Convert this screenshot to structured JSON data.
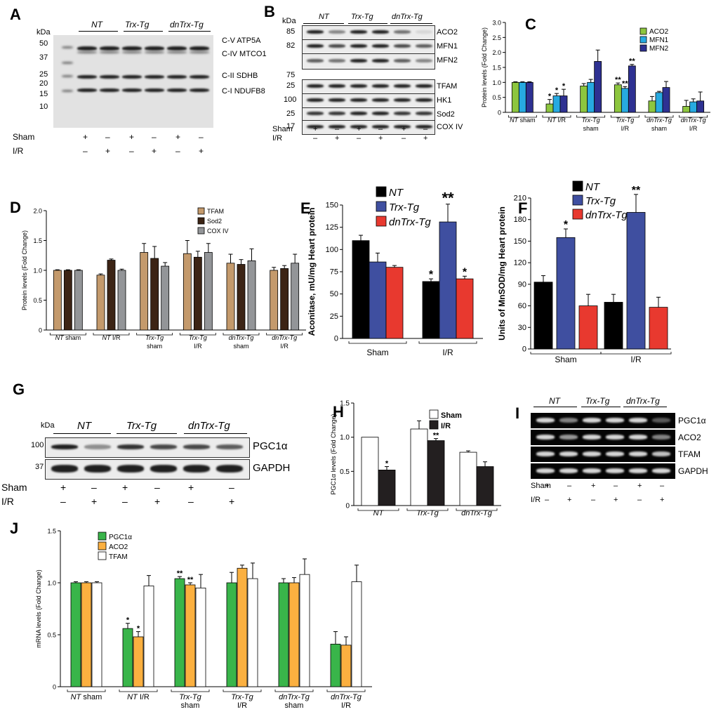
{
  "panels": {
    "A": {
      "letter": "A",
      "kda_label": "kDa",
      "markers": [
        "50",
        "37",
        "25",
        "20",
        "15",
        "10"
      ],
      "groups": [
        "NT",
        "Trx-Tg",
        "dnTrx-Tg"
      ],
      "band_labels": [
        "C-V ATP5A",
        "C-IV MTCO1",
        "C-II SDHB",
        "C-I NDUFB8"
      ],
      "row_labels": [
        "Sham",
        "I/R"
      ],
      "sham_signs": [
        "+",
        "–",
        "+",
        "–",
        "+",
        "–"
      ],
      "ir_signs": [
        "–",
        "+",
        "–",
        "+",
        "–",
        "+"
      ]
    },
    "B": {
      "letter": "B",
      "kda_label": "kDa",
      "groups": [
        "NT",
        "Trx-Tg",
        "dnTrx-Tg"
      ],
      "rows": [
        {
          "kda": "85",
          "label": "ACO2"
        },
        {
          "kda": "82",
          "label": "MFN1"
        },
        {
          "kda": "",
          "label": "MFN2"
        },
        {
          "kda": "75",
          "label": ""
        },
        {
          "kda": "25",
          "label": "TFAM"
        },
        {
          "kda": "100",
          "label": "HK1"
        },
        {
          "kda": "25",
          "label": "Sod2"
        },
        {
          "kda": "17",
          "label": "COX IV"
        }
      ],
      "row_labels": [
        "Sham",
        "I/R"
      ],
      "sham_signs": [
        "+",
        "–",
        "+",
        "–",
        "+",
        "–"
      ],
      "ir_signs": [
        "–",
        "+",
        "–",
        "+",
        "–",
        "+"
      ]
    },
    "G": {
      "letter": "G",
      "kda_label": "kDa",
      "groups": [
        "NT",
        "Trx-Tg",
        "dnTrx-Tg"
      ],
      "rows": [
        {
          "kda": "100",
          "label": "PGC1α"
        },
        {
          "kda": "37",
          "label": "GAPDH"
        }
      ],
      "row_labels": [
        "Sham",
        "I/R"
      ],
      "sham_signs": [
        "+",
        "–",
        "+",
        "–",
        "+",
        "–"
      ],
      "ir_signs": [
        "–",
        "+",
        "–",
        "+",
        "–",
        "+"
      ]
    },
    "I": {
      "letter": "I",
      "groups": [
        "NT",
        "Trx-Tg",
        "dnTrx-Tg"
      ],
      "rows": [
        "PGC1α",
        "ACO2",
        "TFAM",
        "GAPDH"
      ],
      "row_labels": [
        "Sham",
        "I/R"
      ],
      "sham_signs": [
        "+",
        "–",
        "+",
        "–",
        "+",
        "–"
      ],
      "ir_signs": [
        "–",
        "+",
        "–",
        "+",
        "–",
        "+"
      ]
    }
  },
  "chart_data": [
    {
      "id": "C",
      "letter": "C",
      "type": "bar",
      "ylabel": "Protein levels (Fold Change)",
      "ylim": [
        0,
        3.0
      ],
      "yticks": [
        "0",
        "0.5",
        "1.0",
        "1.5",
        "2.0",
        "2.5",
        "3.0"
      ],
      "categories": [
        [
          "NT sham"
        ],
        [
          "NT I/R"
        ],
        [
          "Trx-Tg",
          "sham"
        ],
        [
          "Trx-Tg",
          "I/R"
        ],
        [
          "dnTrx-Tg",
          "sham"
        ],
        [
          "dnTrx-Tg",
          "I/R"
        ]
      ],
      "legend_position": "top-right",
      "series": [
        {
          "name": "ACO2",
          "color": "#8dc63f",
          "values": [
            1.0,
            0.28,
            0.88,
            0.92,
            0.38,
            0.2
          ],
          "errors": [
            0.02,
            0.15,
            0.08,
            0.06,
            0.15,
            0.2
          ],
          "stars": [
            "",
            "*",
            "",
            "**",
            "",
            ""
          ]
        },
        {
          "name": "MFN1",
          "color": "#27aae1",
          "values": [
            1.0,
            0.55,
            1.0,
            0.8,
            0.66,
            0.35
          ],
          "errors": [
            0.02,
            0.08,
            0.1,
            0.06,
            0.04,
            0.1
          ],
          "stars": [
            "",
            "*",
            "",
            "**",
            "",
            ""
          ]
        },
        {
          "name": "MFN2",
          "color": "#2e3192",
          "values": [
            1.0,
            0.55,
            1.7,
            1.55,
            0.83,
            0.38
          ],
          "errors": [
            0.02,
            0.22,
            0.38,
            0.05,
            0.2,
            0.3
          ],
          "stars": [
            "",
            "*",
            "",
            "**",
            "",
            ""
          ]
        }
      ]
    },
    {
      "id": "D",
      "letter": "D",
      "type": "bar",
      "ylabel": "Protein levels (Fold Change)",
      "ylim": [
        0,
        2.0
      ],
      "yticks": [
        "0",
        "0.5",
        "1.0",
        "1.5",
        "2.0"
      ],
      "categories": [
        [
          "NT sham"
        ],
        [
          "NT I/R"
        ],
        [
          "Trx-Tg",
          "sham"
        ],
        [
          "Trx-Tg",
          "I/R"
        ],
        [
          "dnTrx-Tg",
          "sham"
        ],
        [
          "dnTrx-Tg",
          "I/R"
        ]
      ],
      "legend_position": "top-right",
      "series": [
        {
          "name": "TFAM",
          "color": "#c49a6c",
          "values": [
            1.0,
            0.92,
            1.3,
            1.28,
            1.12,
            1.0
          ],
          "errors": [
            0.01,
            0.02,
            0.15,
            0.22,
            0.15,
            0.05
          ],
          "stars": [
            "",
            "",
            "",
            "",
            "",
            ""
          ]
        },
        {
          "name": "Sod2",
          "color": "#3c2415",
          "values": [
            1.0,
            1.17,
            1.2,
            1.22,
            1.1,
            1.03
          ],
          "errors": [
            0.01,
            0.02,
            0.2,
            0.1,
            0.08,
            0.05
          ],
          "stars": [
            "",
            "",
            "",
            "",
            "",
            ""
          ]
        },
        {
          "name": "COX IV",
          "color": "#939598",
          "values": [
            1.0,
            1.0,
            1.07,
            1.3,
            1.16,
            1.12
          ],
          "errors": [
            0.01,
            0.02,
            0.06,
            0.15,
            0.2,
            0.15
          ],
          "stars": [
            "",
            "",
            "",
            "",
            "",
            ""
          ]
        }
      ]
    },
    {
      "id": "E",
      "letter": "E",
      "type": "bar",
      "ylabel": "Aconitase, mU/mg Heart protein",
      "ylim": [
        0,
        150
      ],
      "yticks": [
        "0",
        "25",
        "50",
        "75",
        "100",
        "125",
        "150"
      ],
      "categories": [
        [
          "Sham"
        ],
        [
          "I/R"
        ]
      ],
      "legend_position": "top-left",
      "series": [
        {
          "name": "NT",
          "color": "#000000",
          "values": [
            110,
            64
          ],
          "errors": [
            6,
            3
          ],
          "stars": [
            "",
            "*"
          ]
        },
        {
          "name": "Trx-Tg",
          "color": "#3f4fa0",
          "values": [
            86,
            131
          ],
          "errors": [
            10,
            20
          ],
          "stars": [
            "",
            "**"
          ]
        },
        {
          "name": "dnTrx-Tg",
          "color": "#e8392f",
          "values": [
            80,
            67
          ],
          "errors": [
            2,
            3
          ],
          "stars": [
            "",
            "*"
          ]
        }
      ]
    },
    {
      "id": "F",
      "letter": "F",
      "type": "bar",
      "ylabel": "Units of MnSOD/mg Heart protein",
      "ylim": [
        0,
        210
      ],
      "yticks": [
        "0",
        "30",
        "60",
        "90",
        "120",
        "150",
        "180",
        "210"
      ],
      "categories": [
        [
          "Sham"
        ],
        [
          "I/R"
        ]
      ],
      "legend_position": "top-left",
      "series": [
        {
          "name": "NT",
          "color": "#000000",
          "values": [
            93,
            65
          ],
          "errors": [
            9,
            11
          ],
          "stars": [
            "",
            ""
          ]
        },
        {
          "name": "Trx-Tg",
          "color": "#3f4fa0",
          "values": [
            155,
            190
          ],
          "errors": [
            12,
            25
          ],
          "stars": [
            "*",
            "**"
          ]
        },
        {
          "name": "dnTrx-Tg",
          "color": "#e8392f",
          "values": [
            60,
            58
          ],
          "errors": [
            16,
            14
          ],
          "stars": [
            "",
            ""
          ]
        }
      ]
    },
    {
      "id": "H",
      "letter": "H",
      "type": "bar",
      "ylabel": "PGC1α levels (Fold Change)",
      "ylim": [
        0,
        1.5
      ],
      "yticks": [
        "0",
        "0.5",
        "1.0",
        "1.5"
      ],
      "categories": [
        [
          "NT"
        ],
        [
          "Trx-Tg"
        ],
        [
          "dnTrx-Tg"
        ]
      ],
      "legend_position": "top-right",
      "series": [
        {
          "name": "Sham",
          "color": "#ffffff",
          "values": [
            1.0,
            1.12,
            0.78
          ],
          "errors": [
            0,
            0.12,
            0.02
          ],
          "stars": [
            "",
            "",
            ""
          ]
        },
        {
          "name": "I/R",
          "color": "#231f20",
          "values": [
            0.52,
            0.95,
            0.57
          ],
          "errors": [
            0.05,
            0.03,
            0.07
          ],
          "stars": [
            "*",
            "**",
            ""
          ]
        }
      ]
    },
    {
      "id": "J",
      "letter": "J",
      "type": "bar",
      "ylabel": "mRNA levels (Fold Change)",
      "ylim": [
        0,
        1.5
      ],
      "yticks": [
        "0",
        "0.5",
        "1.0",
        "1.5"
      ],
      "categories": [
        [
          "NT sham"
        ],
        [
          "NT I/R"
        ],
        [
          "Trx-Tg",
          "sham"
        ],
        [
          "Trx-Tg",
          "I/R"
        ],
        [
          "dnTrx-Tg",
          "sham"
        ],
        [
          "dnTrx-Tg",
          "I/R"
        ]
      ],
      "legend_position": "top-left",
      "series": [
        {
          "name": "PGC1α",
          "color": "#39b54a",
          "values": [
            1.0,
            0.56,
            1.04,
            1.0,
            1.0,
            0.41
          ],
          "errors": [
            0.01,
            0.05,
            0.02,
            0.1,
            0.04,
            0.12
          ],
          "stars": [
            "",
            "*",
            "**",
            "",
            "",
            ""
          ]
        },
        {
          "name": "ACO2",
          "color": "#fbb040",
          "values": [
            1.0,
            0.48,
            0.98,
            1.14,
            1.0,
            0.4
          ],
          "errors": [
            0.01,
            0.05,
            0.02,
            0.03,
            0.05,
            0.08
          ],
          "stars": [
            "",
            "*",
            "**",
            "",
            "",
            ""
          ]
        },
        {
          "name": "TFAM",
          "color": "#ffffff",
          "values": [
            1.0,
            0.97,
            0.95,
            1.04,
            1.08,
            1.01
          ],
          "errors": [
            0.01,
            0.1,
            0.13,
            0.15,
            0.15,
            0.16
          ],
          "stars": [
            "",
            "",
            "",
            "",
            "",
            ""
          ]
        }
      ]
    }
  ]
}
